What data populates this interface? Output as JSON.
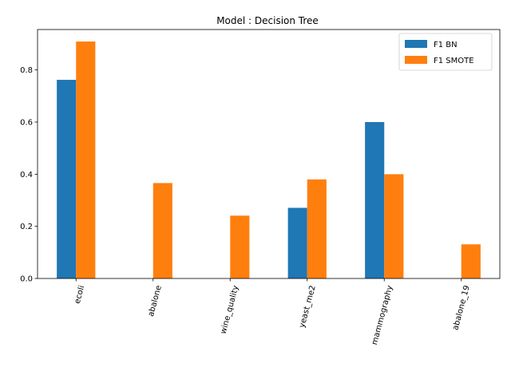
{
  "chart_data": {
    "type": "bar",
    "title": "Model : Decision Tree",
    "xlabel": "",
    "ylabel": "",
    "categories": [
      "ecoli",
      "abalone",
      "wine_quality",
      "yeast_me2",
      "mammography",
      "abalone_19"
    ],
    "series": [
      {
        "name": "F1 BN",
        "color": "#1f77b4",
        "values": [
          0.762,
          0.0,
          0.0,
          0.271,
          0.6,
          0.0
        ]
      },
      {
        "name": "F1 SMOTE",
        "color": "#ff7f0e",
        "values": [
          0.909,
          0.366,
          0.241,
          0.38,
          0.4,
          0.131
        ]
      }
    ],
    "ylim": [
      0,
      0.955
    ],
    "yticks": [
      "0.0",
      "0.2",
      "0.4",
      "0.6",
      "0.8"
    ],
    "ytick_values": [
      0.0,
      0.2,
      0.4,
      0.6,
      0.8
    ],
    "legend_position": "top-right",
    "grid": false,
    "xtick_rotation": 75
  }
}
